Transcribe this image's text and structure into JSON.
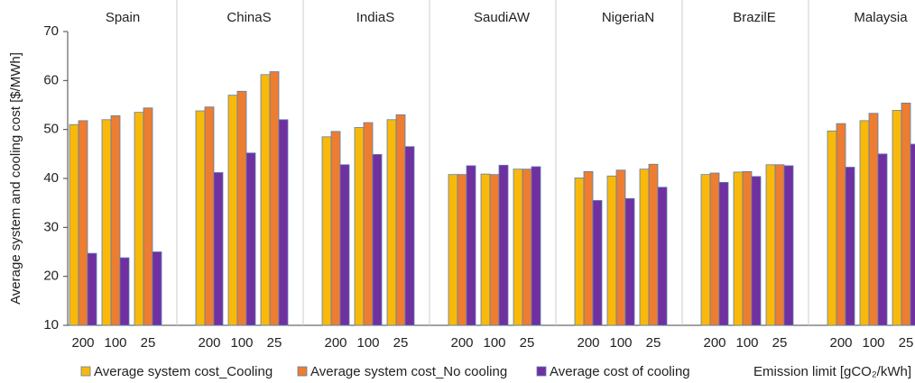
{
  "chart_data": {
    "type": "bar",
    "groups": [
      "Spain",
      "ChinaS",
      "IndiaS",
      "SaudiAW",
      "NigeriaN",
      "BrazilE",
      "Malaysia"
    ],
    "categories": [
      "200",
      "100",
      "25",
      "200",
      "100",
      "25",
      "200",
      "100",
      "25",
      "200",
      "100",
      "25",
      "200",
      "100",
      "25",
      "200",
      "100",
      "25",
      "200",
      "100",
      "25"
    ],
    "y_label": "Average system and cooling cost [$/MWh]",
    "x_label": "Emission limit [gCO₂/kWh]",
    "ylim": [
      10,
      70
    ],
    "yticks": [
      10,
      20,
      30,
      40,
      50,
      60,
      70
    ],
    "series": [
      {
        "name": "Average system cost_Cooling",
        "color": "#f9b90b",
        "values": [
          51,
          52,
          53.5,
          53.8,
          57,
          61.2,
          48.5,
          50.4,
          52,
          40.8,
          40.9,
          41.9,
          40.1,
          40.5,
          41.9,
          40.8,
          41.3,
          42.8,
          49.7,
          51.8,
          53.9
        ]
      },
      {
        "name": "Average system cost_No cooling",
        "color": "#ed7d31",
        "values": [
          51.8,
          52.8,
          54.4,
          54.6,
          57.8,
          61.8,
          49.6,
          51.4,
          53,
          40.8,
          40.8,
          41.9,
          41.4,
          41.7,
          42.9,
          41.1,
          41.4,
          42.8,
          51.2,
          53.3,
          55.4
        ]
      },
      {
        "name": "Average cost of cooling",
        "color": "#7030a0",
        "values": [
          24.7,
          23.8,
          25,
          41.2,
          45.2,
          52,
          42.8,
          44.9,
          46.5,
          42.6,
          42.7,
          42.4,
          35.5,
          35.9,
          38.2,
          39.2,
          40.4,
          42.6,
          42.3,
          45,
          47
        ]
      }
    ]
  }
}
